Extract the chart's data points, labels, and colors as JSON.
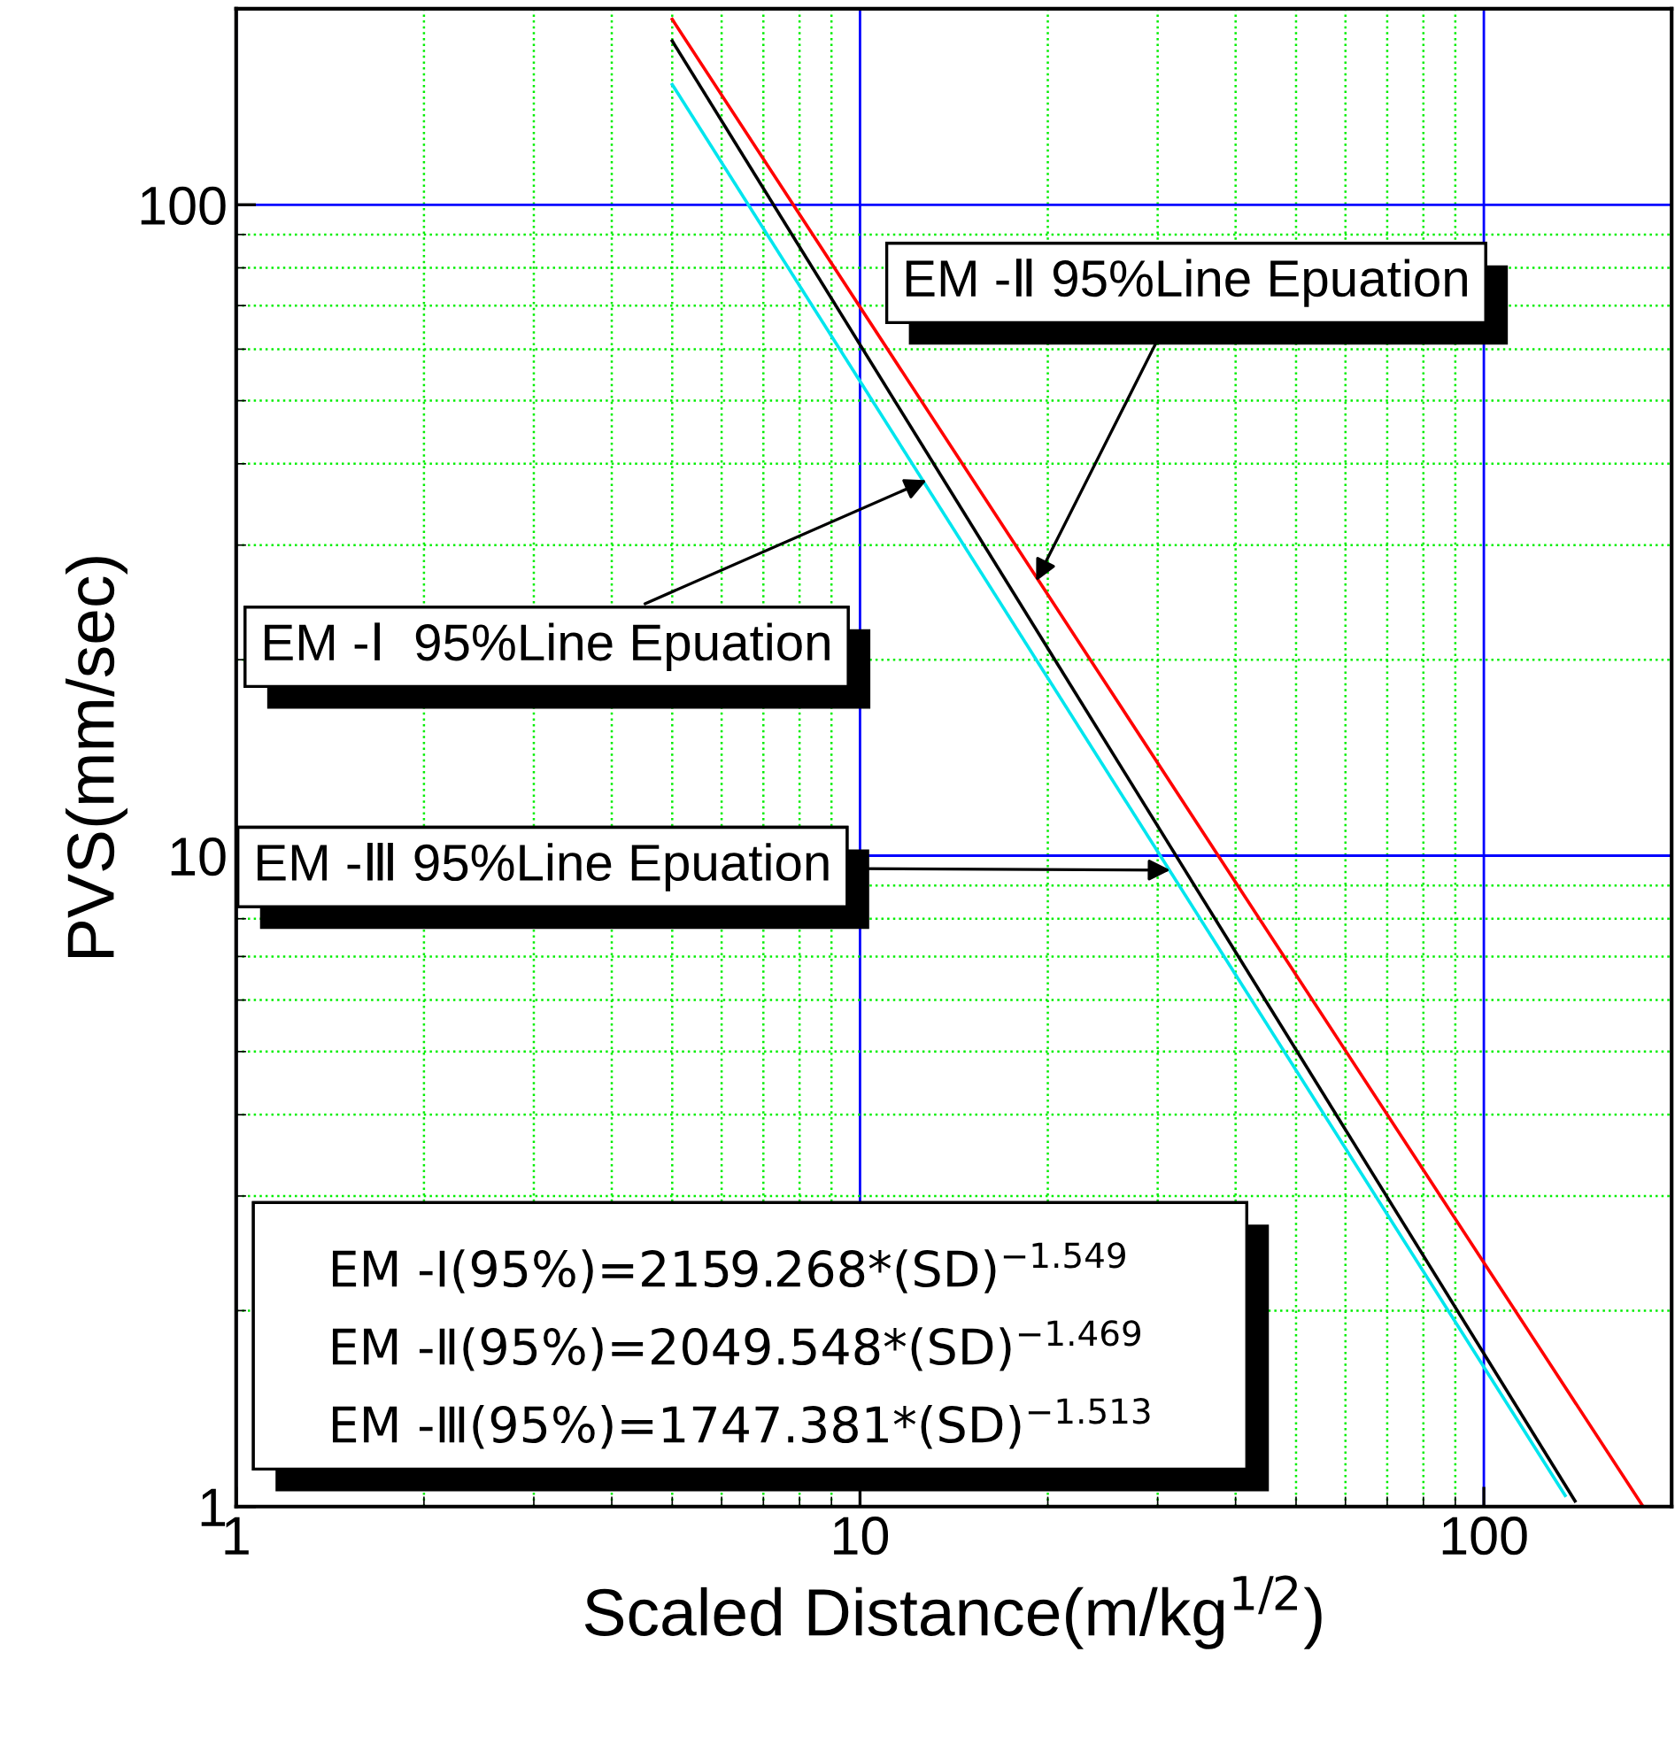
{
  "chart_data": {
    "type": "line",
    "xlabel": "Scaled Distance(m/kg$^{1/2}$)",
    "ylabel": "PVS(mm/sec)",
    "log": "xy",
    "xlim": [
      1,
      200
    ],
    "ylim": [
      1,
      200
    ],
    "xticks": [
      1,
      {
        "value": 2,
        "label": null
      },
      {
        "value": 3,
        "label": null
      },
      {
        "value": 4,
        "label": null
      },
      {
        "value": 5,
        "label": null
      },
      {
        "value": 6,
        "label": null
      },
      {
        "value": 7,
        "label": null
      },
      {
        "value": 8,
        "label": null
      },
      {
        "value": 9,
        "label": null
      },
      10,
      {
        "value": 20,
        "label": null
      },
      {
        "value": 30,
        "label": null
      },
      {
        "value": 40,
        "label": null
      },
      {
        "value": 50,
        "label": null
      },
      {
        "value": 60,
        "label": null
      },
      {
        "value": 70,
        "label": null
      },
      {
        "value": 80,
        "label": null
      },
      {
        "value": 90,
        "label": null
      },
      100,
      {
        "value": 200,
        "label": null
      }
    ],
    "yticks": [
      1,
      {
        "value": 2,
        "label": null
      },
      {
        "value": 3,
        "label": null
      },
      {
        "value": 4,
        "label": null
      },
      {
        "value": 5,
        "label": null
      },
      {
        "value": 6,
        "label": null
      },
      {
        "value": 7,
        "label": null
      },
      {
        "value": 8,
        "label": null
      },
      {
        "value": 9,
        "label": null
      },
      10,
      {
        "value": 20,
        "label": null
      },
      {
        "value": 30,
        "label": null
      },
      {
        "value": 40,
        "label": null
      },
      {
        "value": 50,
        "label": null
      },
      {
        "value": 60,
        "label": null
      },
      {
        "value": 70,
        "label": null
      },
      {
        "value": 80,
        "label": null
      },
      {
        "value": 90,
        "label": null
      },
      100,
      {
        "value": 200,
        "label": null
      }
    ],
    "grid": true,
    "marker": "none",
    "line_style": "solid",
    "series": [
      {
        "color": "#000000",
        "x": [
          5,
          140
        ],
        "values": [
          178.5,
          1.02
        ]
      },
      {
        "color": "#ff0000",
        "x": [
          5,
          180
        ],
        "values": [
          192.7,
          1.0
        ]
      },
      {
        "color": "#00e5ee",
        "x": [
          5,
          135
        ],
        "values": [
          153,
          1.04
        ]
      }
    ],
    "annotations": [
      {
        "text": "EM -Ⅱ 95%Line Epuation",
        "x": 19,
        "y": 26
      },
      {
        "text": "EM -Ⅰ  95%Line Epuation",
        "x": 13,
        "y": 38
      },
      {
        "text": "EM -Ⅲ 95%Line Epuation",
        "x": 32,
        "y": 9.5
      },
      "EM -Ⅰ(95%)=2159.268*(SD)$^{−1.549}$",
      "EM -Ⅱ(95%)=2049.548*(SD)$^{−1.469}$",
      "EM -Ⅲ(95%)=1747.381*(SD)$^{−1.513}$"
    ]
  }
}
